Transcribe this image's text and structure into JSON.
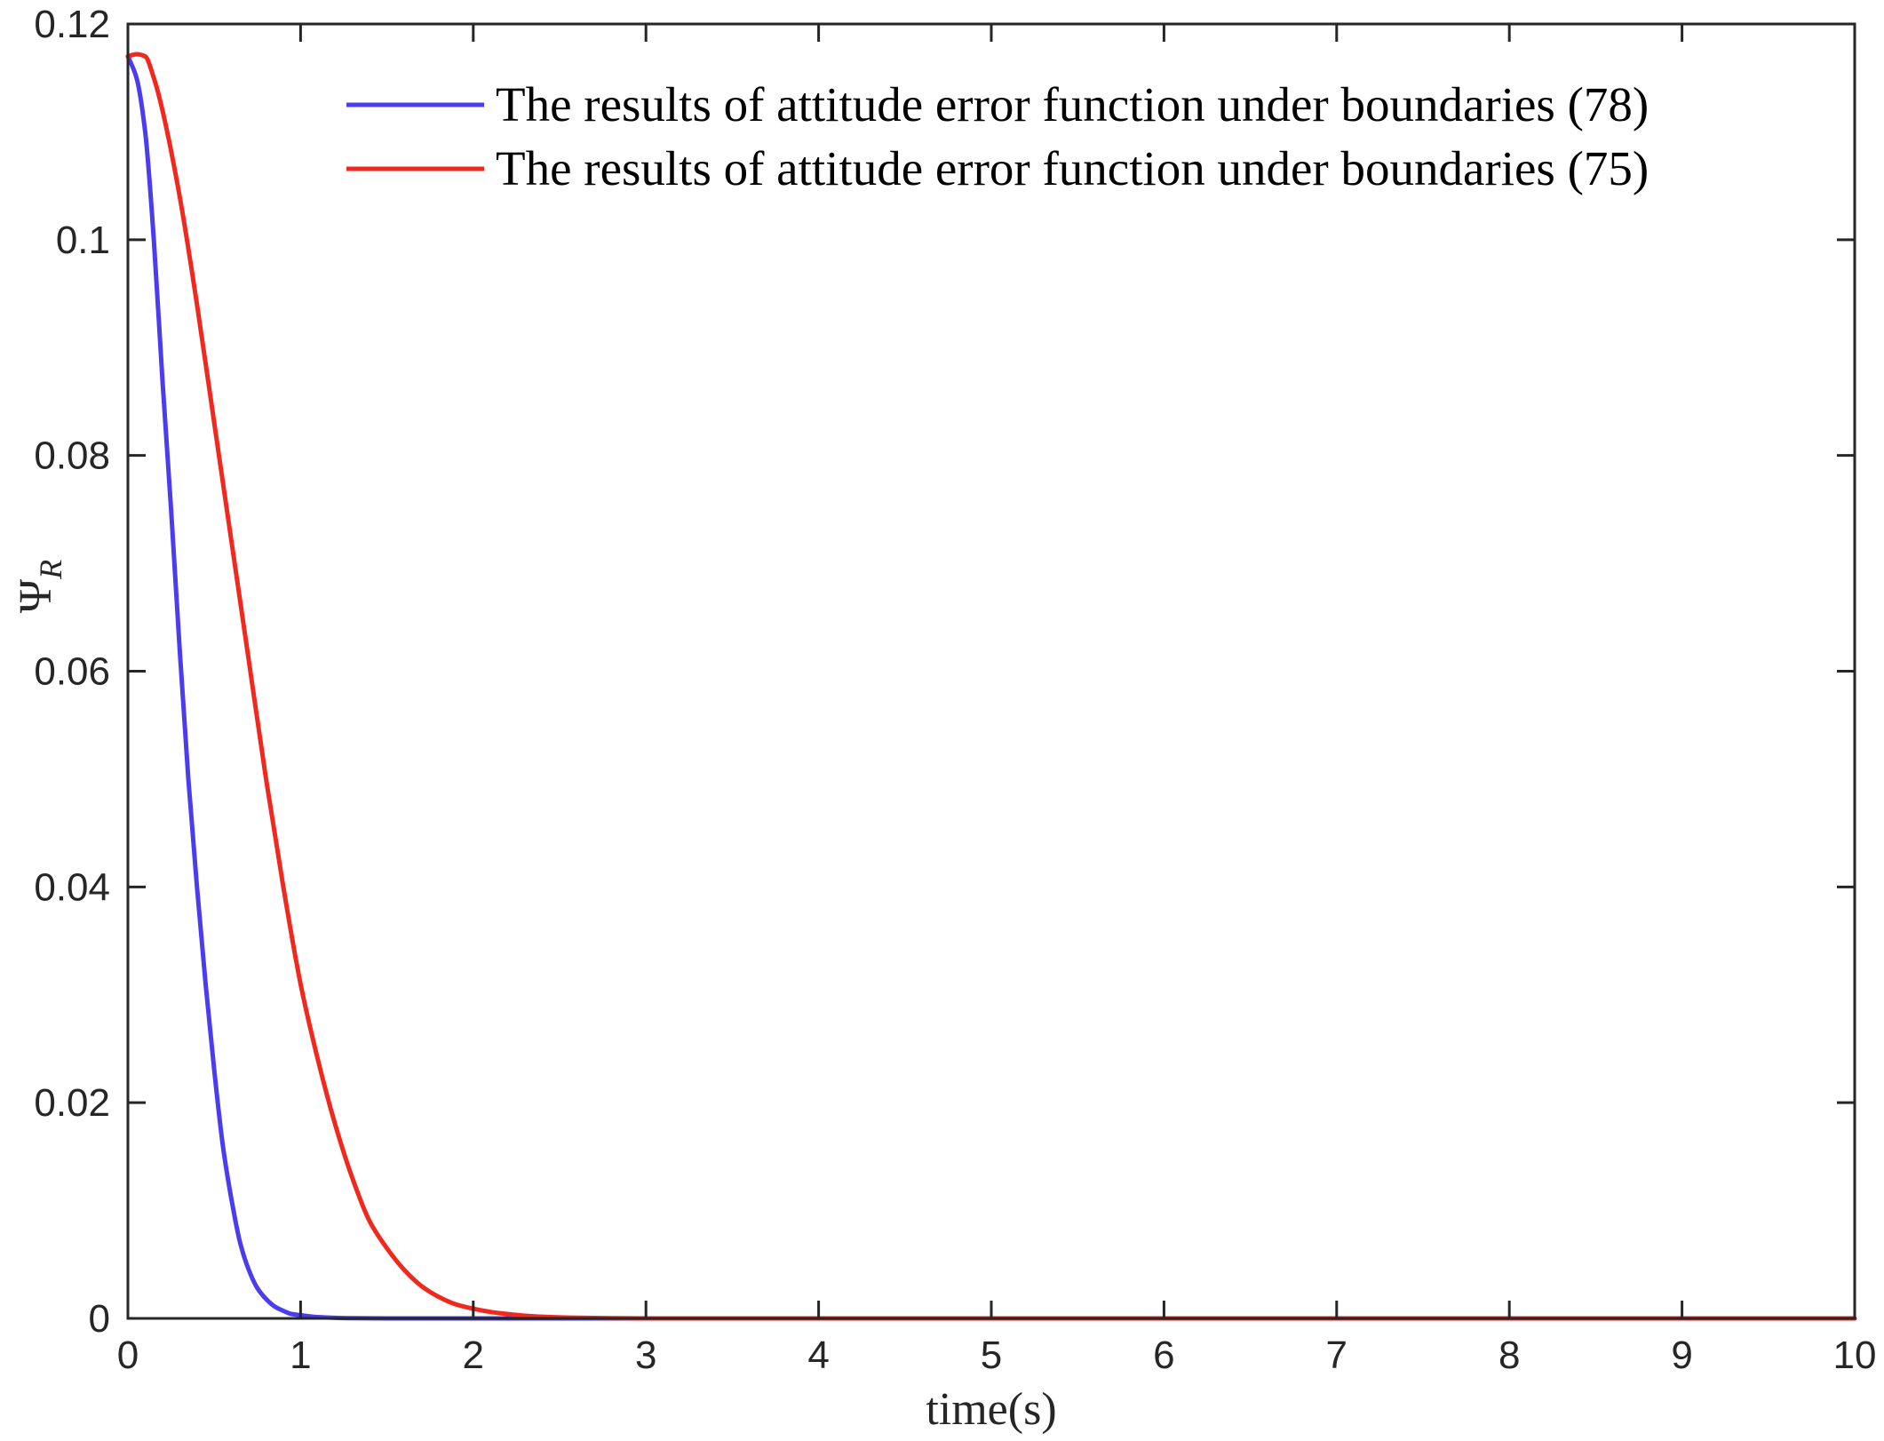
{
  "chart_data": {
    "type": "line",
    "title": "",
    "xlabel": "time(s)",
    "ylabel": "Ψ",
    "ylabel_subscript": "R",
    "xlim": [
      0,
      10
    ],
    "ylim": [
      0,
      0.12
    ],
    "xticks": [
      0,
      1,
      2,
      3,
      4,
      5,
      6,
      7,
      8,
      9,
      10
    ],
    "xtick_labels": [
      "0",
      "1",
      "2",
      "3",
      "4",
      "5",
      "6",
      "7",
      "8",
      "9",
      "10"
    ],
    "yticks": [
      0,
      0.02,
      0.04,
      0.06,
      0.08,
      0.1,
      0.12
    ],
    "ytick_labels": [
      "0",
      "0.02",
      "0.04",
      "0.06",
      "0.08",
      "0.1",
      "0.12"
    ],
    "grid": false,
    "legend_position": "top-right",
    "series": [
      {
        "name": "The results of attitude error function under boundaries (78)",
        "color": "#4b3cf0",
        "x": [
          0,
          0.05,
          0.1,
          0.15,
          0.2,
          0.25,
          0.3,
          0.35,
          0.4,
          0.45,
          0.5,
          0.55,
          0.6,
          0.65,
          0.7,
          0.75,
          0.8,
          0.85,
          0.9,
          0.95,
          1.0,
          1.05,
          1.1,
          1.2,
          1.3,
          1.5,
          2,
          3,
          10
        ],
        "y": [
          0.117,
          0.115,
          0.11,
          0.1,
          0.087,
          0.075,
          0.062,
          0.05,
          0.04,
          0.031,
          0.023,
          0.016,
          0.011,
          0.007,
          0.0045,
          0.0028,
          0.0018,
          0.0011,
          0.0007,
          0.0004,
          0.0003,
          0.0002,
          0.00012,
          5e-05,
          2e-05,
          0,
          0,
          0,
          0
        ]
      },
      {
        "name": "The results of attitude error function under boundaries (75)",
        "color": "#f0281e",
        "x": [
          0,
          0.05,
          0.1,
          0.15,
          0.2,
          0.3,
          0.4,
          0.5,
          0.6,
          0.7,
          0.8,
          0.9,
          1.0,
          1.1,
          1.2,
          1.3,
          1.4,
          1.5,
          1.6,
          1.7,
          1.8,
          1.9,
          2.0,
          2.1,
          2.2,
          2.3,
          2.4,
          2.6,
          2.8,
          3.0,
          4,
          10
        ],
        "y": [
          0.117,
          0.1172,
          0.117,
          0.115,
          0.112,
          0.104,
          0.094,
          0.083,
          0.072,
          0.061,
          0.05,
          0.04,
          0.031,
          0.024,
          0.018,
          0.013,
          0.009,
          0.0065,
          0.0045,
          0.003,
          0.002,
          0.0013,
          0.0009,
          0.0006,
          0.0004,
          0.00025,
          0.00015,
          6e-05,
          2e-05,
          0,
          0,
          0
        ]
      }
    ]
  }
}
